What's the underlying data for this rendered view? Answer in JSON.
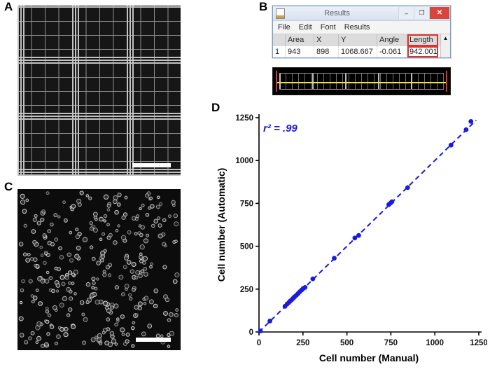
{
  "panels": {
    "a": {
      "label": "A"
    },
    "b": {
      "label": "B"
    },
    "c": {
      "label": "C"
    },
    "d": {
      "label": "D"
    }
  },
  "results_window": {
    "title": "Results",
    "menu": [
      "File",
      "Edit",
      "Font",
      "Results"
    ],
    "columns": [
      "",
      "Area",
      "X",
      "Y",
      "Angle",
      "Length"
    ],
    "row": [
      "1",
      "943",
      "898",
      "1068.667",
      "-0.061",
      "942.001"
    ],
    "highlighted_column": "Length",
    "highlight_color": "#e03131",
    "window_buttons": {
      "minimize": "–",
      "maximize": "❐",
      "close": "✕"
    },
    "scroll_up_glyph": "▲"
  },
  "micrograph_c": {
    "cell_count": 340,
    "seed": 7
  },
  "chart_data": {
    "type": "scatter",
    "title": "",
    "xlabel": "Cell number (Manual)",
    "ylabel": "Cell number (Automatic)",
    "xlim": [
      0,
      1250
    ],
    "ylim": [
      0,
      1250
    ],
    "xticks": [
      0,
      250,
      500,
      750,
      1000,
      1250
    ],
    "yticks": [
      0,
      250,
      500,
      750,
      1000,
      1250
    ],
    "annotation": "r² = .99",
    "accent_color": "#1a1ae0",
    "grid": false,
    "legend": "none",
    "fit_line": {
      "style": "dashed",
      "x": [
        0,
        1235
      ],
      "y": [
        0,
        1235
      ]
    },
    "points": [
      [
        8,
        6
      ],
      [
        62,
        64
      ],
      [
        148,
        150
      ],
      [
        160,
        163
      ],
      [
        170,
        172
      ],
      [
        178,
        181
      ],
      [
        186,
        188
      ],
      [
        194,
        196
      ],
      [
        202,
        205
      ],
      [
        212,
        214
      ],
      [
        222,
        224
      ],
      [
        232,
        235
      ],
      [
        243,
        245
      ],
      [
        252,
        254
      ],
      [
        262,
        260
      ],
      [
        306,
        310
      ],
      [
        428,
        430
      ],
      [
        545,
        548
      ],
      [
        567,
        563
      ],
      [
        738,
        743
      ],
      [
        748,
        752
      ],
      [
        756,
        760
      ],
      [
        845,
        842
      ],
      [
        1092,
        1090
      ],
      [
        1178,
        1180
      ],
      [
        1205,
        1228
      ]
    ]
  }
}
